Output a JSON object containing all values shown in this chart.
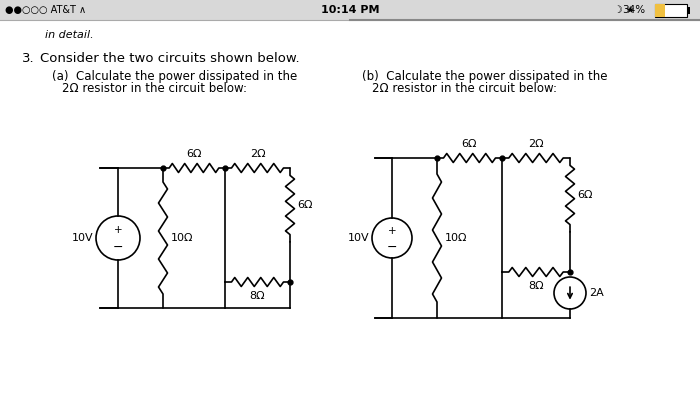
{
  "bg_color": "#f0f0f0",
  "title_color": "#000000",
  "circuit_color": "#000000",
  "status_left": "●●○○○ AT&T",
  "status_center": "10:14 PM",
  "status_right": "34%",
  "header_text": "in detail.",
  "q_num": "3.",
  "q_text": "Consider the two circuits shown below.",
  "sub_a": "(a)  Calculate the power dissipated in the",
  "sub_a2": "2Ω resistor in the circuit below:",
  "sub_b": "(b)  Calculate the power dissipated in the",
  "sub_b2": "2Ω resistor in the circuit below:",
  "ca_vs_label": "10V",
  "ca_r1": "6Ω",
  "ca_r2": "2Ω",
  "ca_r3": "6Ω",
  "ca_r4": "10Ω",
  "ca_r5": "8Ω",
  "cb_vs_label": "10V",
  "cb_r1": "6Ω",
  "cb_r2": "2Ω",
  "cb_r3": "6Ω",
  "cb_r4": "10Ω",
  "cb_r5": "8Ω",
  "cb_cs_label": "2A"
}
